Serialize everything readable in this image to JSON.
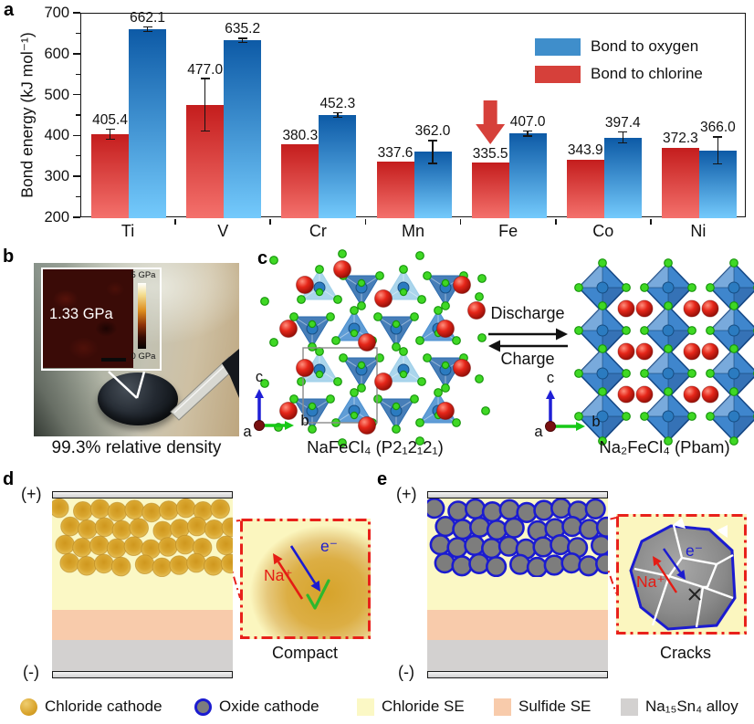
{
  "figure": {
    "panel_labels": {
      "a": "a",
      "b": "b",
      "c": "c",
      "d": "d",
      "e": "e"
    }
  },
  "chart_data": {
    "type": "bar",
    "title": "",
    "ylabel": "Bond energy (kJ mol⁻¹)",
    "ylim": [
      200,
      700
    ],
    "yticks": [
      "200",
      "300",
      "400",
      "500",
      "600",
      "700"
    ],
    "categories": [
      "Ti",
      "V",
      "Cr",
      "Mn",
      "Fe",
      "Co",
      "Ni"
    ],
    "series": [
      {
        "name": "Bond to chlorine",
        "values": [
          405.4,
          477.0,
          380.3,
          337.6,
          335.5,
          343.9,
          372.3
        ],
        "errors": [
          12,
          64,
          0,
          0,
          0,
          0,
          0
        ],
        "color_top": "#c41d1d",
        "color_bottom": "#f4716c"
      },
      {
        "name": "Bond to oxygen",
        "values": [
          662.1,
          635.2,
          452.3,
          362.0,
          407.0,
          397.4,
          366.0
        ],
        "errors": [
          6,
          5,
          6,
          28,
          6,
          13,
          33
        ],
        "color_top": "#0d5aa6",
        "color_bottom": "#74cafc"
      }
    ],
    "legend": [
      {
        "label": "Bond to oxygen",
        "color": "#3f8ecb"
      },
      {
        "label": "Bond to chlorine",
        "color": "#d6403a"
      }
    ],
    "legend_position": "top-right",
    "grid": false,
    "value_labels": true,
    "annotation_arrow": {
      "category": "Fe",
      "series": "Bond to chlorine",
      "color": "#d6403a"
    }
  },
  "panel_b": {
    "inset_value": "1.33 GPa",
    "colorbar_top": "5 GPa",
    "colorbar_bottom": "0 GPa",
    "caption": "99.3% relative density"
  },
  "panel_c": {
    "left_formula": "NaFeCl₄ (P2₁2₁2₁)",
    "right_formula": "Na₂FeCl₄ (Pbam)",
    "forward_label": "Discharge",
    "backward_label": "Charge",
    "axes": {
      "up": "c",
      "right": "b",
      "origin": "a"
    }
  },
  "panel_d": {
    "positive": "(+)",
    "negative": "(-)",
    "ion_label": "Na⁺",
    "electron_label": "e⁻",
    "inset_caption": "Compact"
  },
  "panel_e": {
    "positive": "(+)",
    "negative": "(-)",
    "ion_label": "Na⁺",
    "electron_label": "e⁻",
    "inset_caption": "Cracks"
  },
  "bottom_legend": [
    {
      "label": "Chloride cathode",
      "swatch": "gold-circle",
      "color": "#d9a42c"
    },
    {
      "label": "Oxide cathode",
      "swatch": "gray-circle-blue-ring",
      "color": "#7d7d7d",
      "ring": "#1b1bd0"
    },
    {
      "label": "Chloride SE",
      "swatch": "square",
      "color": "#fbf8c5"
    },
    {
      "label": "Sulfide SE",
      "swatch": "square",
      "color": "#f8cbab"
    },
    {
      "label": "Na₁₅Sn₄ alloy",
      "swatch": "square",
      "color": "#d3d1d0"
    }
  ],
  "colors": {
    "chloride_se": "#fbf8c5",
    "sulfide_se": "#f8cbab",
    "alloy": "#d3d1d0",
    "inset_border_red": "#e8211b",
    "oxide_ring_blue": "#1b1bd0",
    "crack_white": "#ffffff",
    "check_green": "#2db82d"
  }
}
